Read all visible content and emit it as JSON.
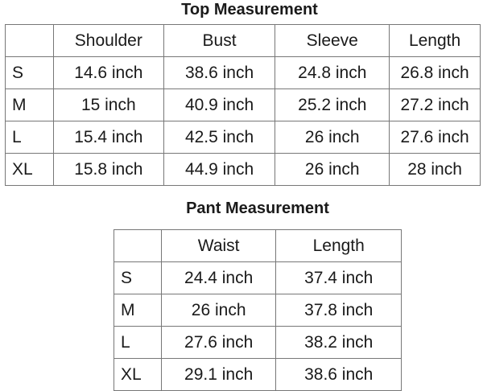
{
  "top": {
    "title": "Top  Measurement",
    "headers": [
      "",
      "Shoulder",
      "Bust",
      "Sleeve",
      "Length"
    ],
    "rows": [
      [
        "S",
        "14.6 inch",
        "38.6 inch",
        "24.8 inch",
        "26.8 inch"
      ],
      [
        "M",
        "15 inch",
        "40.9 inch",
        "25.2 inch",
        "27.2 inch"
      ],
      [
        "L",
        "15.4 inch",
        "42.5 inch",
        "26 inch",
        "27.6 inch"
      ],
      [
        "XL",
        "15.8 inch",
        "44.9 inch",
        "26 inch",
        "28 inch"
      ]
    ]
  },
  "pant": {
    "title": "Pant Measurement",
    "headers": [
      "",
      "Waist",
      "Length"
    ],
    "rows": [
      [
        "S",
        "24.4 inch",
        "37.4 inch"
      ],
      [
        "M",
        "26 inch",
        "37.8 inch"
      ],
      [
        "L",
        "27.6 inch",
        "38.2 inch"
      ],
      [
        "XL",
        "29.1 inch",
        "38.6 inch"
      ]
    ]
  }
}
